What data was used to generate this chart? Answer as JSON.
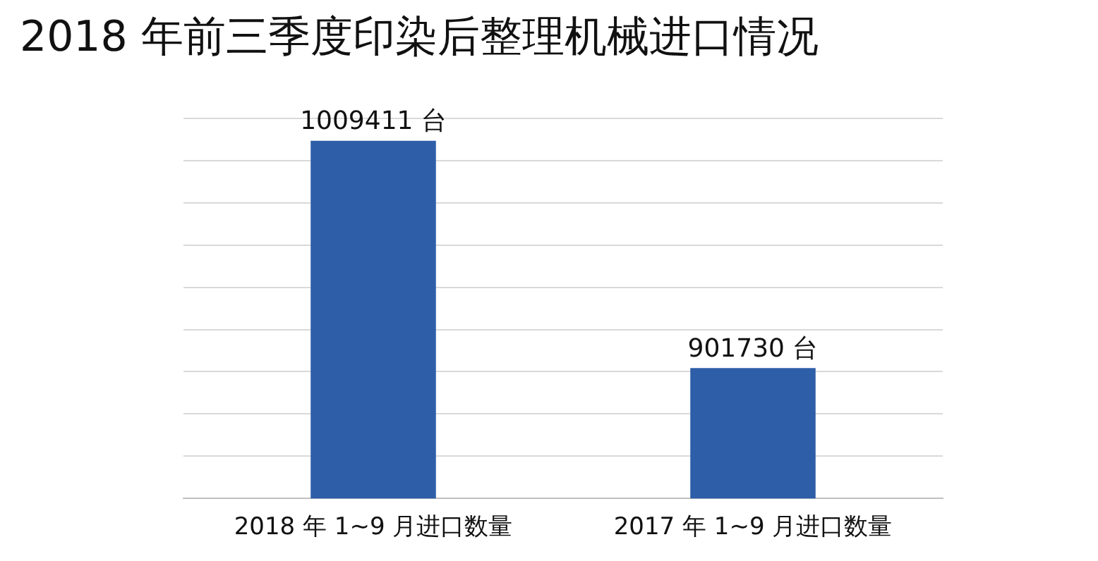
{
  "chart_data": {
    "type": "bar",
    "title": "2018 年前三季度印染后整理机械进口情况",
    "categories": [
      "2018 年 1~9 月进口数量",
      "2017 年 1~9 月进口数量"
    ],
    "values": [
      1009411,
      901730
    ],
    "color": "#2e5ea8",
    "value_labels": [
      "1009411 台",
      "901730 台"
    ],
    "ylim": [
      840000,
      1020000
    ],
    "yticks": [
      {
        "value": 840000,
        "label": null
      },
      {
        "value": 860000,
        "label": null
      },
      {
        "value": 880000,
        "label": null
      },
      {
        "value": 900000,
        "label": null
      },
      {
        "value": 920000,
        "label": null
      },
      {
        "value": 940000,
        "label": null
      },
      {
        "value": 960000,
        "label": null
      },
      {
        "value": 980000,
        "label": null
      },
      {
        "value": 1000000,
        "label": null
      },
      {
        "value": 1020000,
        "label": null
      }
    ],
    "grid": "y",
    "legend": false,
    "tick_labels": "x"
  }
}
